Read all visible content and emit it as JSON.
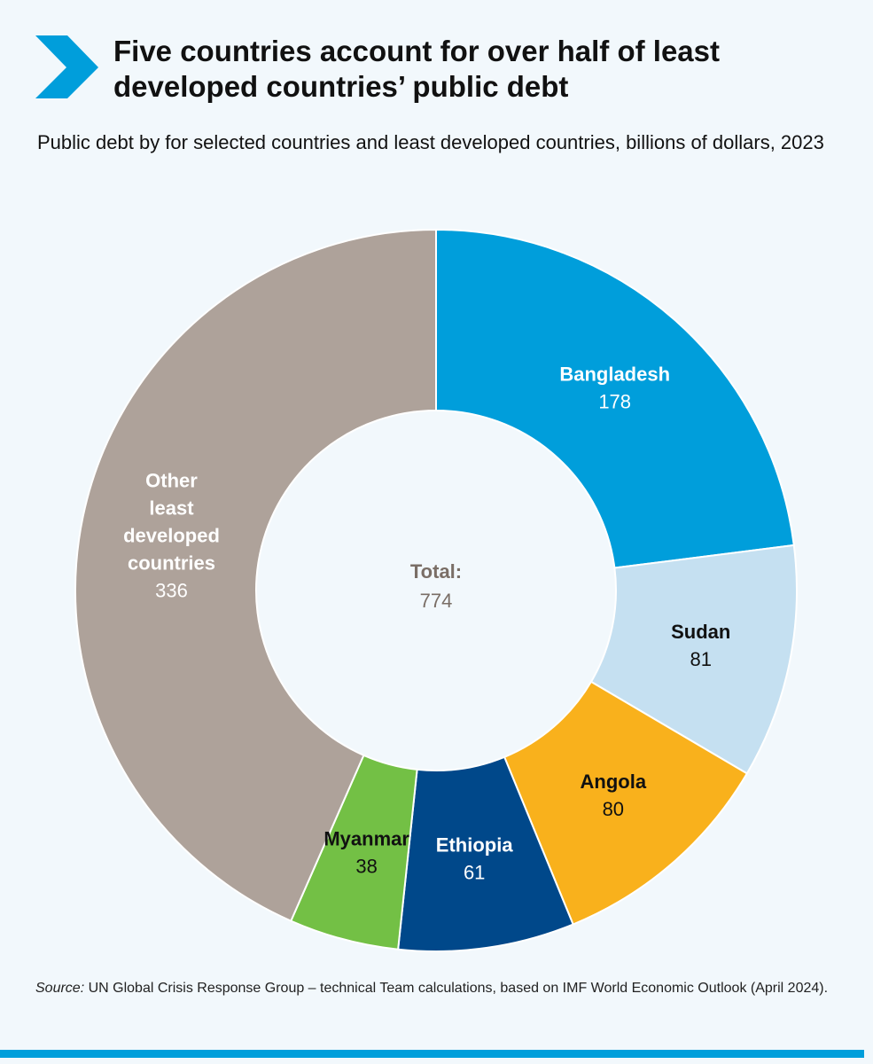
{
  "header": {
    "title": "Five countries account for over half of least developed countries’ public debt",
    "subtitle": "Public debt by for selected countries and least developed countries, billions of dollars, 2023"
  },
  "colors": {
    "accent": "#009edb",
    "background": "#f2f8fc"
  },
  "chart_data": {
    "type": "pie",
    "variant": "donut",
    "title": "Five countries account for over half of least developed countries’ public debt",
    "subtitle": "Public debt by for selected countries and least developed countries, billions of dollars, 2023",
    "center_label": "Total:",
    "total": 774,
    "slices": [
      {
        "label": "Bangladesh",
        "value": 178,
        "color": "#009edb",
        "label_color": "#ffffff",
        "value_color": "#ffffff"
      },
      {
        "label": "Sudan",
        "value": 81,
        "color": "#c5e0f1",
        "label_color": "#111111",
        "value_color": "#111111"
      },
      {
        "label": "Angola",
        "value": 80,
        "color": "#f9b11c",
        "label_color": "#111111",
        "value_color": "#111111"
      },
      {
        "label": "Ethiopia",
        "value": 61,
        "color": "#00488a",
        "label_color": "#ffffff",
        "value_color": "#ffffff"
      },
      {
        "label": "Myanmar",
        "value": 38,
        "color": "#73c045",
        "label_color": "#111111",
        "value_color": "#111111"
      },
      {
        "label": "Other least developed countries",
        "label_lines": [
          "Other",
          "least",
          "developed",
          "countries"
        ],
        "value": 336,
        "color": "#aea29a",
        "label_color": "#ffffff",
        "value_color": "#ffffff"
      }
    ]
  },
  "footer": {
    "source_label": "Source:",
    "source_text": " UN Global Crisis Response Group – technical Team calculations, based on IMF World Economic Outlook (April 2024)."
  }
}
